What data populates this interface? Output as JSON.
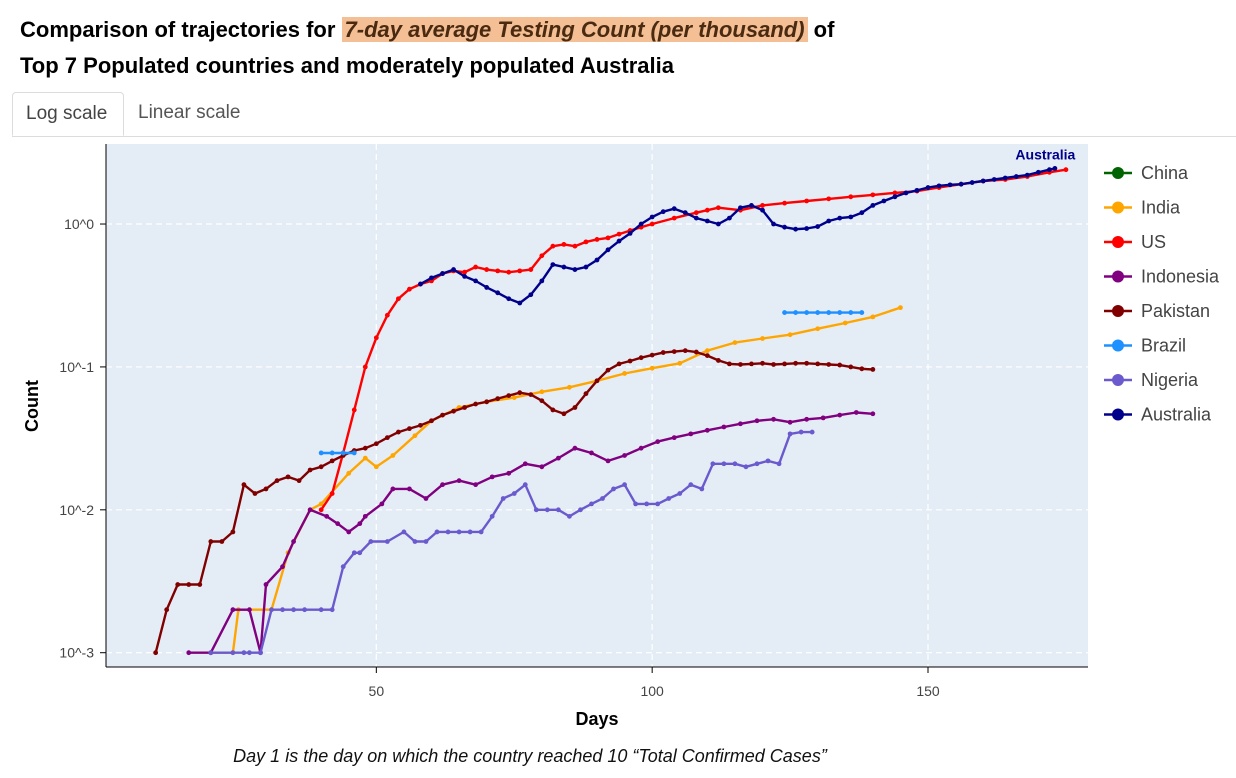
{
  "title": {
    "prefix": "Comparison of trajectories for",
    "highlight": "7-day average Testing Count (per thousand)",
    "suffix": "of",
    "line2": "Top 7 Populated countries and moderately populated Australia"
  },
  "tabs": [
    {
      "label": "Log scale",
      "active": true
    },
    {
      "label": "Linear scale",
      "active": false
    }
  ],
  "caption": "Day 1 is the day on which the country reached 10 “Total Confirmed Cases”",
  "chart_data": {
    "type": "line",
    "xlabel": "Days",
    "ylabel": "Count",
    "xlim": [
      1,
      179
    ],
    "ylim_log10": [
      -3.1,
      0.56
    ],
    "x_ticks": [
      50,
      100,
      150
    ],
    "x_tick_labels": [
      "50",
      "100",
      "150"
    ],
    "y_ticks_log10": [
      -3,
      -2,
      -1,
      0
    ],
    "y_tick_labels": [
      "10^-3",
      "10^-2",
      "10^-1",
      "10^0"
    ],
    "grid": true,
    "legend_position": "right",
    "annotation": {
      "text": "Australia",
      "x": 172,
      "y_log10": 0.45,
      "color": "#00008b"
    },
    "series": [
      {
        "name": "China",
        "color": "#006400",
        "x": [],
        "y": []
      },
      {
        "name": "India",
        "color": "#ffa500",
        "x": [
          20,
          24,
          25,
          31,
          34,
          38,
          40,
          45,
          48,
          50,
          53,
          57,
          60,
          65,
          70,
          75,
          80,
          85,
          90,
          95,
          100,
          105,
          110,
          115,
          120,
          125,
          130,
          135,
          140,
          145
        ],
        "y": [
          0.001,
          0.001,
          0.002,
          0.002,
          0.005,
          0.01,
          0.011,
          0.018,
          0.023,
          0.02,
          0.024,
          0.033,
          0.042,
          0.052,
          0.057,
          0.061,
          0.067,
          0.072,
          0.08,
          0.09,
          0.098,
          0.106,
          0.13,
          0.148,
          0.158,
          0.168,
          0.185,
          0.203,
          0.224,
          0.26
        ]
      },
      {
        "name": "US",
        "color": "#ff0000",
        "x": [
          40,
          42,
          44,
          46,
          48,
          50,
          52,
          54,
          56,
          58,
          60,
          62,
          64,
          66,
          68,
          70,
          72,
          74,
          76,
          78,
          80,
          82,
          84,
          86,
          88,
          90,
          92,
          94,
          96,
          98,
          100,
          104,
          108,
          110,
          112,
          116,
          120,
          124,
          128,
          132,
          136,
          140,
          144,
          148,
          152,
          156,
          160,
          164,
          168,
          172,
          175
        ],
        "y": [
          0.01,
          0.013,
          0.025,
          0.05,
          0.1,
          0.16,
          0.23,
          0.3,
          0.35,
          0.38,
          0.4,
          0.45,
          0.47,
          0.46,
          0.5,
          0.48,
          0.47,
          0.46,
          0.47,
          0.48,
          0.6,
          0.7,
          0.72,
          0.7,
          0.75,
          0.78,
          0.8,
          0.85,
          0.9,
          0.95,
          1.0,
          1.1,
          1.2,
          1.25,
          1.3,
          1.25,
          1.35,
          1.4,
          1.45,
          1.5,
          1.55,
          1.6,
          1.65,
          1.7,
          1.8,
          1.9,
          2.0,
          2.05,
          2.15,
          2.3,
          2.4
        ]
      },
      {
        "name": "Indonesia",
        "color": "#800080",
        "x": [
          16,
          20,
          24,
          27,
          29,
          30,
          33,
          35,
          38,
          41,
          43,
          45,
          47,
          48,
          51,
          53,
          56,
          59,
          62,
          65,
          68,
          71,
          74,
          77,
          80,
          83,
          86,
          89,
          92,
          95,
          98,
          101,
          104,
          107,
          110,
          113,
          116,
          119,
          122,
          125,
          128,
          131,
          134,
          137,
          140
        ],
        "y": [
          0.001,
          0.001,
          0.002,
          0.002,
          0.001,
          0.003,
          0.004,
          0.006,
          0.01,
          0.009,
          0.008,
          0.007,
          0.008,
          0.009,
          0.011,
          0.014,
          0.014,
          0.012,
          0.015,
          0.016,
          0.015,
          0.017,
          0.018,
          0.021,
          0.02,
          0.023,
          0.027,
          0.025,
          0.022,
          0.024,
          0.027,
          0.03,
          0.032,
          0.034,
          0.036,
          0.038,
          0.04,
          0.042,
          0.043,
          0.041,
          0.043,
          0.044,
          0.046,
          0.048,
          0.047
        ]
      },
      {
        "name": "Pakistan",
        "color": "#800000",
        "x": [
          10,
          12,
          14,
          16,
          18,
          20,
          22,
          24,
          26,
          28,
          30,
          32,
          34,
          36,
          38,
          40,
          42,
          44,
          46,
          48,
          50,
          52,
          54,
          56,
          58,
          60,
          62,
          64,
          66,
          68,
          70,
          72,
          74,
          76,
          78,
          80,
          82,
          84,
          86,
          88,
          90,
          92,
          94,
          96,
          98,
          100,
          102,
          104,
          106,
          108,
          110,
          112,
          114,
          116,
          118,
          120,
          122,
          124,
          126,
          128,
          130,
          132,
          134,
          136,
          138,
          140
        ],
        "y": [
          0.001,
          0.002,
          0.003,
          0.003,
          0.003,
          0.006,
          0.006,
          0.007,
          0.015,
          0.013,
          0.014,
          0.016,
          0.017,
          0.016,
          0.019,
          0.02,
          0.022,
          0.024,
          0.026,
          0.027,
          0.029,
          0.032,
          0.035,
          0.037,
          0.039,
          0.042,
          0.046,
          0.049,
          0.052,
          0.055,
          0.057,
          0.06,
          0.063,
          0.066,
          0.064,
          0.058,
          0.05,
          0.047,
          0.052,
          0.065,
          0.08,
          0.095,
          0.105,
          0.11,
          0.116,
          0.121,
          0.126,
          0.128,
          0.13,
          0.127,
          0.12,
          0.111,
          0.105,
          0.104,
          0.105,
          0.106,
          0.104,
          0.105,
          0.106,
          0.106,
          0.105,
          0.104,
          0.103,
          0.1,
          0.097,
          0.096
        ]
      },
      {
        "name": "Brazil",
        "color": "#1e90ff",
        "x": [
          40,
          42,
          44,
          46,
          124,
          126,
          128,
          130,
          132,
          134,
          136,
          138
        ],
        "y": [
          0.025,
          0.025,
          0.025,
          0.025,
          0.24,
          0.24,
          0.24,
          0.24,
          0.24,
          0.24,
          0.24,
          0.24
        ]
      },
      {
        "name": "Nigeria",
        "color": "#6a5acd",
        "x": [
          20,
          24,
          26,
          27,
          29,
          31,
          33,
          35,
          37,
          40,
          42,
          44,
          46,
          47,
          49,
          52,
          55,
          57,
          59,
          61,
          63,
          65,
          67,
          69,
          71,
          73,
          75,
          77,
          79,
          81,
          83,
          85,
          87,
          89,
          91,
          93,
          95,
          97,
          99,
          101,
          103,
          105,
          107,
          109,
          111,
          113,
          115,
          117,
          119,
          121,
          123,
          125,
          127,
          129
        ],
        "y": [
          0.001,
          0.001,
          0.001,
          0.001,
          0.001,
          0.002,
          0.002,
          0.002,
          0.002,
          0.002,
          0.002,
          0.004,
          0.005,
          0.005,
          0.006,
          0.006,
          0.007,
          0.006,
          0.006,
          0.007,
          0.007,
          0.007,
          0.007,
          0.007,
          0.009,
          0.012,
          0.013,
          0.015,
          0.01,
          0.01,
          0.01,
          0.009,
          0.01,
          0.011,
          0.012,
          0.014,
          0.015,
          0.011,
          0.011,
          0.011,
          0.012,
          0.013,
          0.015,
          0.014,
          0.021,
          0.021,
          0.021,
          0.02,
          0.021,
          0.022,
          0.021,
          0.034,
          0.035,
          0.035
        ]
      },
      {
        "name": "Australia",
        "color": "#00008b",
        "x": [
          58,
          60,
          62,
          64,
          66,
          68,
          70,
          72,
          74,
          76,
          78,
          80,
          82,
          84,
          86,
          88,
          90,
          92,
          94,
          96,
          98,
          100,
          102,
          104,
          106,
          108,
          110,
          112,
          114,
          116,
          118,
          120,
          122,
          124,
          126,
          128,
          130,
          132,
          134,
          136,
          138,
          140,
          142,
          144,
          146,
          148,
          150,
          152,
          154,
          156,
          158,
          160,
          162,
          164,
          166,
          168,
          170,
          172,
          173
        ],
        "y": [
          0.38,
          0.42,
          0.45,
          0.48,
          0.43,
          0.4,
          0.36,
          0.33,
          0.3,
          0.28,
          0.32,
          0.4,
          0.52,
          0.5,
          0.48,
          0.5,
          0.56,
          0.66,
          0.76,
          0.86,
          1.0,
          1.12,
          1.22,
          1.28,
          1.2,
          1.1,
          1.05,
          1.0,
          1.1,
          1.3,
          1.35,
          1.25,
          1.0,
          0.95,
          0.92,
          0.93,
          0.96,
          1.05,
          1.1,
          1.12,
          1.2,
          1.35,
          1.45,
          1.55,
          1.65,
          1.72,
          1.8,
          1.85,
          1.88,
          1.9,
          1.95,
          2.0,
          2.05,
          2.1,
          2.15,
          2.2,
          2.3,
          2.4,
          2.45
        ]
      }
    ]
  }
}
